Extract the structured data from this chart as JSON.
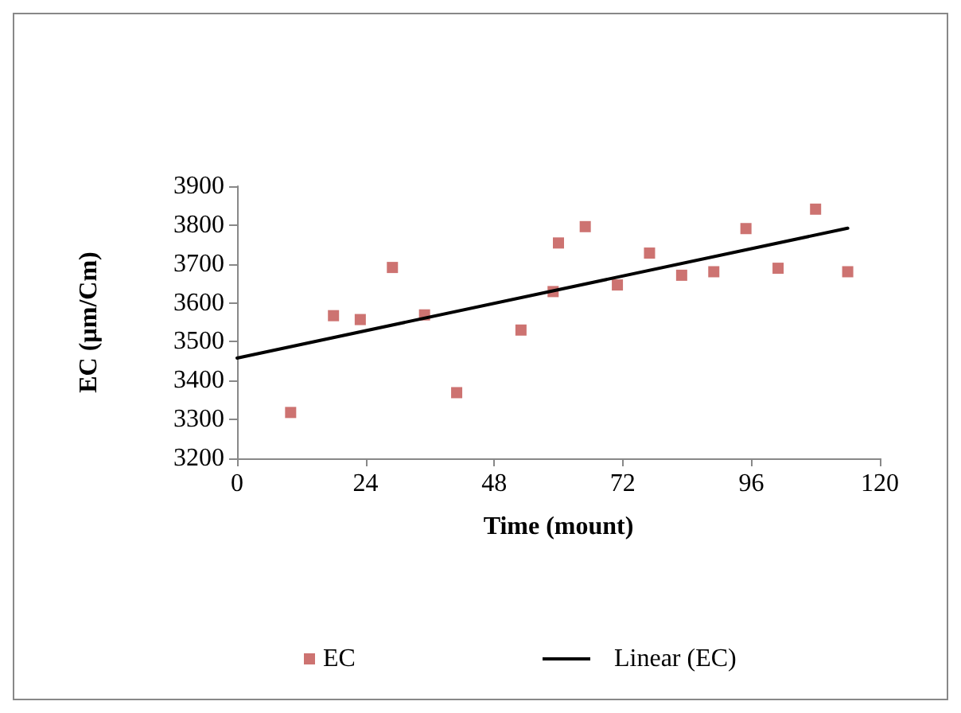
{
  "chart_data": {
    "type": "scatter",
    "xlabel": "Time (mount)",
    "ylabel": "EC (µm/Cm)",
    "xlim": [
      0,
      120
    ],
    "xticks": [
      0,
      24,
      48,
      72,
      96,
      120
    ],
    "ylim": [
      3200,
      3900
    ],
    "yticks": [
      3200,
      3300,
      3400,
      3500,
      3600,
      3700,
      3800,
      3900
    ],
    "grid": false,
    "legend": "bottom",
    "marker": "square",
    "series": [
      {
        "name": "EC",
        "color": "#c0504d",
        "x": [
          10,
          18,
          23,
          29,
          35,
          41,
          53,
          59,
          60,
          65,
          71,
          77,
          83,
          89,
          95,
          101,
          108,
          114
        ],
        "values": [
          3318,
          3567,
          3557,
          3691,
          3569,
          3369,
          3530,
          3629,
          3754,
          3796,
          3646,
          3728,
          3671,
          3680,
          3791,
          3689,
          3841,
          3680
        ]
      },
      {
        "name": "Linear (EC)",
        "type": "line",
        "color": "#000000",
        "line_style": "solid",
        "marker": "none",
        "x": [
          0,
          114
        ],
        "values": [
          3458,
          3792
        ]
      }
    ]
  }
}
